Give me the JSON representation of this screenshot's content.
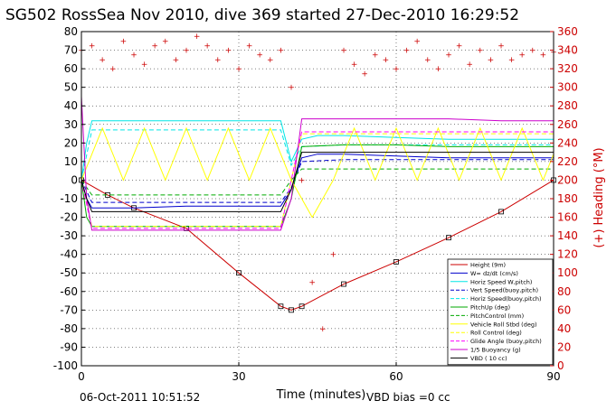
{
  "chart_data": {
    "type": "line",
    "title": "SG502 RossSea Nov 2010, dive 369 started 27-Dec-2010 16:29:52",
    "xlabel": "Time (minutes)",
    "ylabel_right": "(+) Heading (°M)",
    "xlim": [
      0,
      90
    ],
    "ylim": [
      -100,
      80
    ],
    "ylim_right": [
      0,
      360
    ],
    "x_ticks": [
      "0",
      "30",
      "60",
      "90"
    ],
    "y_ticks": [
      "80",
      "70",
      "60",
      "50",
      "40",
      "30",
      "20",
      "10",
      "0",
      "-10",
      "-20",
      "-30",
      "-40",
      "-50",
      "-60",
      "-70",
      "-80",
      "-90",
      "-100"
    ],
    "y_ticks_right": [
      "360",
      "340",
      "320",
      "300",
      "280",
      "260",
      "240",
      "220",
      "200",
      "180",
      "160",
      "140",
      "120",
      "100",
      "80",
      "60",
      "40",
      "20",
      "0"
    ],
    "grid": true,
    "legend_position": "bottom-right",
    "footer_date": "06-Oct-2011 10:51:52",
    "footer_note": "VBD bias =0 cc",
    "series": [
      {
        "name": "Height (9m)",
        "color": "#cc0000",
        "style": "solid",
        "x": [
          0,
          5,
          10,
          20,
          30,
          38,
          40,
          42,
          50,
          60,
          70,
          80,
          90
        ],
        "y": [
          0,
          -8,
          -15,
          -26,
          -50,
          -68,
          -70,
          -68,
          -56,
          -44,
          -31,
          -17,
          0
        ]
      },
      {
        "name": "W= dz/dt (cm/s)",
        "color": "#0000cc",
        "style": "solid",
        "x": [
          0,
          1,
          2,
          5,
          10,
          20,
          30,
          38,
          40,
          42,
          45,
          50,
          60,
          70,
          80,
          90
        ],
        "y": [
          0,
          -10,
          -15,
          -15,
          -15,
          -14,
          -14,
          -14,
          -5,
          12,
          14,
          14,
          13,
          12,
          12,
          12
        ]
      },
      {
        "name": "Horiz Speed W,pitch)",
        "color": "#00e6e6",
        "style": "solid",
        "x": [
          0,
          1,
          2,
          5,
          10,
          20,
          30,
          38,
          40,
          42,
          45,
          50,
          60,
          70,
          80,
          90
        ],
        "y": [
          0,
          20,
          32,
          32,
          32,
          32,
          32,
          32,
          10,
          22,
          24,
          24,
          23,
          22,
          22,
          22
        ]
      },
      {
        "name": "Vert Speed(buoy,pitch)",
        "color": "#0000cc",
        "style": "dashed",
        "x": [
          0,
          2,
          10,
          20,
          30,
          38,
          40,
          42,
          50,
          60,
          70,
          80,
          90
        ],
        "y": [
          0,
          -12,
          -12,
          -12,
          -12,
          -12,
          -4,
          10,
          11,
          11,
          11,
          11,
          11
        ]
      },
      {
        "name": "Horiz Speed(buoy,pitch)",
        "color": "#00e6e6",
        "style": "dashed",
        "x": [
          0,
          2,
          10,
          20,
          30,
          38,
          40,
          42,
          50,
          60,
          70,
          80,
          90
        ],
        "y": [
          0,
          27,
          27,
          27,
          27,
          27,
          8,
          18,
          19,
          19,
          19,
          19,
          19
        ]
      },
      {
        "name": "PitchUp (deg)",
        "color": "#00aa00",
        "style": "solid",
        "x": [
          0,
          1,
          2,
          10,
          20,
          30,
          38,
          40,
          42,
          50,
          60,
          70,
          80,
          90
        ],
        "y": [
          0,
          -20,
          -25,
          -25,
          -25,
          -25,
          -25,
          -10,
          18,
          19,
          19,
          18,
          18,
          18
        ]
      },
      {
        "name": "PitchControl (mm)",
        "color": "#00aa00",
        "style": "dashed",
        "x": [
          0,
          2,
          10,
          20,
          30,
          38,
          40,
          42,
          50,
          60,
          70,
          80,
          90
        ],
        "y": [
          0,
          -8,
          -8,
          -8,
          -8,
          -8,
          0,
          6,
          6,
          6,
          6,
          6,
          6
        ]
      },
      {
        "name": "Vehicle Roll Stbd (deg)",
        "color": "#ffff00",
        "style": "solid",
        "x": [
          0,
          4,
          8,
          12,
          16,
          20,
          24,
          28,
          32,
          36,
          40,
          44,
          48,
          52,
          56,
          60,
          64,
          68,
          72,
          76,
          80,
          84,
          88,
          90
        ],
        "y": [
          0,
          28,
          0,
          28,
          0,
          28,
          0,
          28,
          0,
          28,
          0,
          -20,
          0,
          28,
          0,
          28,
          0,
          28,
          0,
          28,
          0,
          28,
          0,
          14
        ]
      },
      {
        "name": "Roll Control (deg)",
        "color": "#ffff00",
        "style": "dashed",
        "x": [
          0,
          2,
          10,
          20,
          30,
          38,
          40,
          42,
          50,
          60,
          70,
          80,
          90
        ],
        "y": [
          0,
          -25,
          -25,
          -25,
          -25,
          -25,
          0,
          25,
          25,
          25,
          25,
          25,
          25
        ]
      },
      {
        "name": "Glide Angle (buoy,pitch)",
        "color": "#ff00ff",
        "style": "dashed",
        "x": [
          0,
          2,
          10,
          20,
          30,
          38,
          40,
          42,
          50,
          60,
          70,
          80,
          90
        ],
        "y": [
          0,
          -26,
          -26,
          -26,
          -26,
          -26,
          0,
          26,
          26,
          26,
          26,
          26,
          26
        ]
      },
      {
        "name": "1/5 Buoyancy (g)",
        "color": "#cc00cc",
        "style": "solid",
        "x": [
          0,
          1,
          2,
          10,
          20,
          30,
          38,
          40,
          42,
          50,
          60,
          70,
          80,
          90
        ],
        "y": [
          45,
          -10,
          -27,
          -27,
          -27,
          -27,
          -27,
          -10,
          33,
          33,
          33,
          33,
          32,
          32
        ]
      },
      {
        "name": "VBD ( 10 cc)",
        "color": "#000000",
        "style": "solid",
        "x": [
          0,
          1,
          2,
          10,
          20,
          30,
          38,
          40,
          42,
          50,
          60,
          70,
          80,
          90
        ],
        "y": [
          0,
          -10,
          -17,
          -17,
          -17,
          -17,
          -17,
          -5,
          15,
          15,
          15,
          15,
          15,
          15
        ]
      }
    ],
    "heading_series": {
      "name": "Heading",
      "color": "#cc0000",
      "x": [
        0,
        2,
        4,
        6,
        8,
        10,
        12,
        14,
        16,
        18,
        20,
        22,
        24,
        26,
        28,
        30,
        32,
        34,
        36,
        38,
        40,
        42,
        44,
        46,
        48,
        50,
        52,
        54,
        56,
        58,
        60,
        62,
        64,
        66,
        68,
        70,
        72,
        74,
        76,
        78,
        80,
        82,
        84,
        86,
        88,
        90
      ],
      "y": [
        340,
        345,
        330,
        320,
        350,
        335,
        325,
        345,
        350,
        330,
        340,
        355,
        345,
        330,
        340,
        320,
        345,
        335,
        330,
        340,
        300,
        200,
        90,
        40,
        120,
        340,
        325,
        315,
        335,
        330,
        320,
        340,
        350,
        330,
        320,
        335,
        345,
        325,
        340,
        330,
        345,
        330,
        335,
        340,
        335,
        338
      ]
    }
  }
}
